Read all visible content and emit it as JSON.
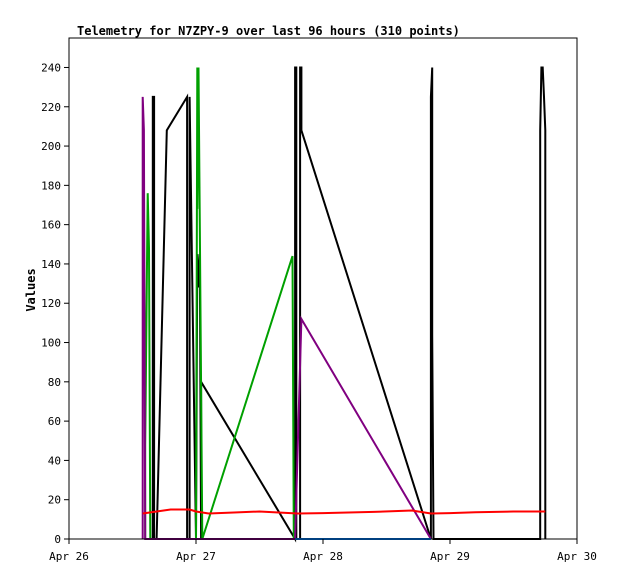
{
  "chart_data": {
    "type": "line",
    "title": "Telemetry for N7ZPY-9 over last 96 hours (310 points)",
    "xlabel": "",
    "ylabel": "Values",
    "xlim": [
      0,
      4
    ],
    "ylim": [
      0,
      255
    ],
    "x_ticks": [
      {
        "value": 0,
        "label": "Apr 26"
      },
      {
        "value": 1,
        "label": "Apr 27"
      },
      {
        "value": 2,
        "label": "Apr 28"
      },
      {
        "value": 3,
        "label": "Apr 29"
      },
      {
        "value": 4,
        "label": "Apr 30"
      }
    ],
    "y_ticks": [
      0,
      20,
      40,
      60,
      80,
      100,
      120,
      140,
      160,
      180,
      200,
      220,
      240
    ],
    "grid": false,
    "legend": "none",
    "series": [
      {
        "color": "#000000",
        "points": [
          [
            0.66,
            0
          ],
          [
            0.66,
            225
          ],
          [
            0.67,
            225
          ],
          [
            0.67,
            0
          ],
          [
            0.69,
            0
          ],
          [
            0.77,
            208
          ],
          [
            0.93,
            225
          ],
          [
            0.93,
            0
          ],
          [
            0.95,
            0
          ],
          [
            0.95,
            225
          ],
          [
            1.0,
            0
          ],
          [
            1.01,
            145
          ],
          [
            1.02,
            128
          ],
          [
            1.03,
            145
          ],
          [
            1.04,
            0
          ],
          [
            1.04,
            80
          ],
          [
            1.78,
            0
          ],
          [
            1.78,
            240
          ],
          [
            1.79,
            240
          ],
          [
            1.79,
            0
          ],
          [
            1.82,
            0
          ],
          [
            1.82,
            240
          ],
          [
            1.83,
            240
          ],
          [
            1.83,
            208
          ],
          [
            2.85,
            0
          ],
          [
            2.85,
            225
          ],
          [
            2.86,
            240
          ],
          [
            2.86,
            104
          ],
          [
            2.87,
            0
          ],
          [
            3.71,
            0
          ],
          [
            3.71,
            208
          ],
          [
            3.72,
            240
          ],
          [
            3.73,
            240
          ],
          [
            3.74,
            225
          ],
          [
            3.75,
            208
          ],
          [
            3.75,
            0
          ]
        ]
      },
      {
        "color": "#00a000",
        "points": [
          [
            0.6,
            0
          ],
          [
            0.6,
            48
          ],
          [
            0.62,
            176
          ],
          [
            0.63,
            148
          ],
          [
            0.64,
            0
          ],
          [
            1.0,
            0
          ],
          [
            1.01,
            240
          ],
          [
            1.01,
            168
          ],
          [
            1.02,
            240
          ],
          [
            1.03,
            160
          ],
          [
            1.05,
            0
          ],
          [
            1.76,
            144
          ],
          [
            1.77,
            0
          ]
        ]
      },
      {
        "color": "#800080",
        "points": [
          [
            0.58,
            0
          ],
          [
            0.58,
            225
          ],
          [
            0.59,
            208
          ],
          [
            0.6,
            0
          ],
          [
            1.78,
            0
          ],
          [
            1.83,
            112
          ],
          [
            2.85,
            0
          ]
        ]
      },
      {
        "color": "#ff0000",
        "points": [
          [
            0.58,
            13
          ],
          [
            0.8,
            15
          ],
          [
            0.95,
            15
          ],
          [
            1.0,
            14
          ],
          [
            1.1,
            13
          ],
          [
            1.3,
            13.5
          ],
          [
            1.5,
            14
          ],
          [
            1.8,
            13
          ],
          [
            2.0,
            13.2
          ],
          [
            2.4,
            13.8
          ],
          [
            2.7,
            14.5
          ],
          [
            2.85,
            13
          ],
          [
            3.0,
            13.2
          ],
          [
            3.2,
            13.6
          ],
          [
            3.5,
            14
          ],
          [
            3.75,
            14
          ]
        ]
      },
      {
        "color": "#0080ff",
        "points": [
          [
            1.78,
            0
          ],
          [
            2.85,
            0
          ]
        ]
      }
    ]
  }
}
